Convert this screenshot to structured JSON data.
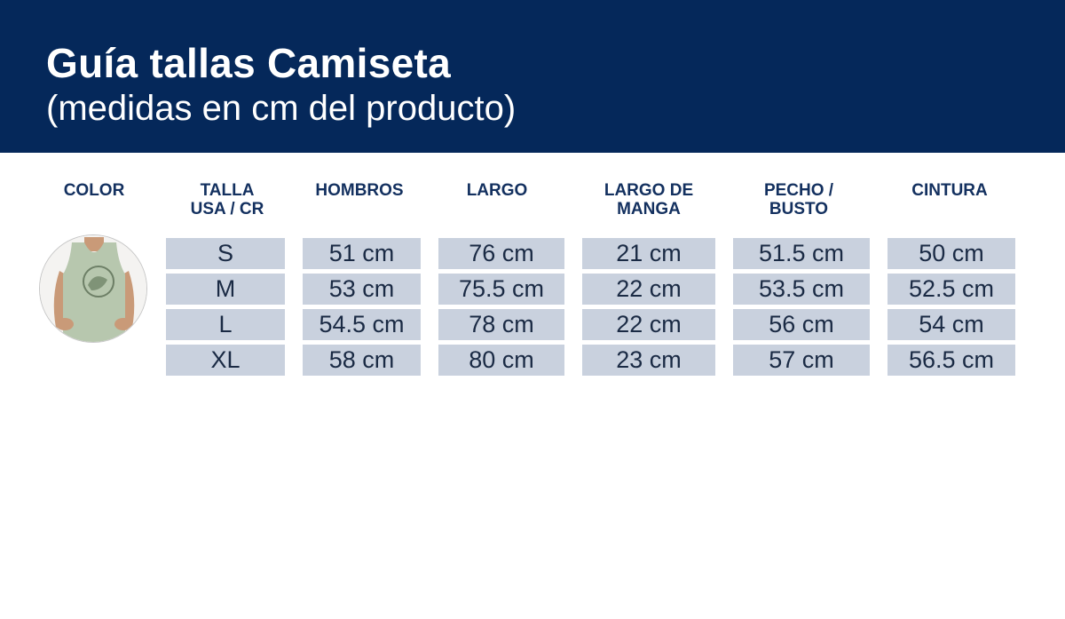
{
  "header": {
    "title": "Guía tallas Camiseta",
    "subtitle": "(medidas en cm del producto)"
  },
  "colors": {
    "header_bg": "#05285a",
    "header_text": "#ffffff",
    "column_heading": "#13305f",
    "cell_bg": "#c9d1de",
    "cell_text": "#1a2a44",
    "shirt": "#b7c7ae"
  },
  "columns": {
    "color": "COLOR",
    "talla_line1": "TALLA",
    "talla_line2": "USA / CR",
    "hombros": "HOMBROS",
    "largo": "LARGO",
    "manga_line1": "LARGO DE",
    "manga_line2": "MANGA",
    "pecho_line1": "PECHO /",
    "pecho_line2": "BUSTO",
    "cintura": "CINTURA"
  },
  "rows": [
    {
      "talla": "S",
      "hombros": "51 cm",
      "largo": "76 cm",
      "manga": "21 cm",
      "pecho": "51.5 cm",
      "cintura": "50 cm"
    },
    {
      "talla": "M",
      "hombros": "53 cm",
      "largo": "75.5 cm",
      "manga": "22 cm",
      "pecho": "53.5 cm",
      "cintura": "52.5 cm"
    },
    {
      "talla": "L",
      "hombros": "54.5 cm",
      "largo": "78 cm",
      "manga": "22 cm",
      "pecho": "56 cm",
      "cintura": "54 cm"
    },
    {
      "talla": "XL",
      "hombros": "58 cm",
      "largo": "80 cm",
      "manga": "23 cm",
      "pecho": "57 cm",
      "cintura": "56.5 cm"
    }
  ],
  "product_image": {
    "icon": "tank-top-model-photo"
  }
}
